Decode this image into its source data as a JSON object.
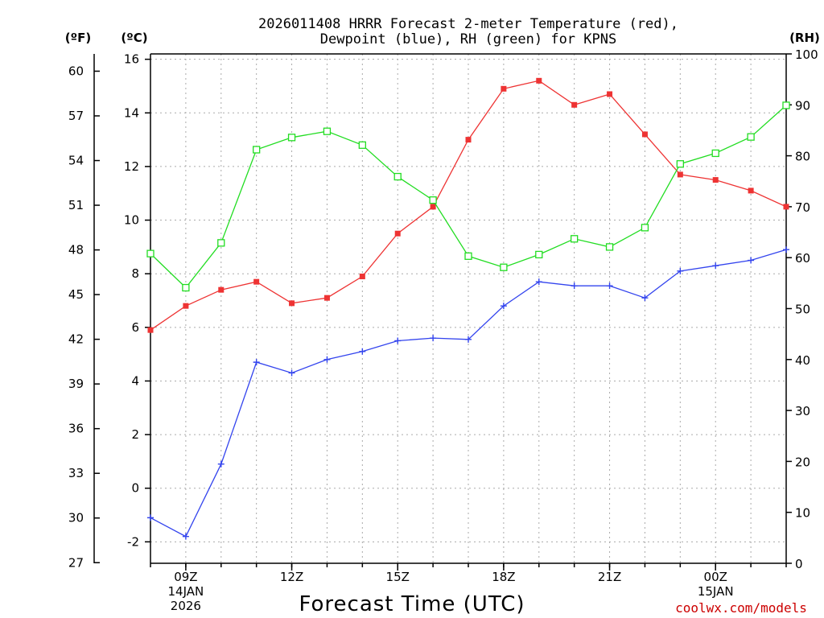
{
  "chart_data": {
    "type": "line",
    "title": "2026011408 HRRR Forecast 2-meter Temperature (red), Dewpoint (blue), RH (green) for KPNS",
    "title_lines": [
      "2026011408 HRRR Forecast 2-meter Temperature (red),",
      "Dewpoint (blue), RH (green) for KPNS"
    ],
    "xlabel": "Forecast Time (UTC)",
    "credit": "coolwx.com/models",
    "x_hours": [
      8,
      9,
      10,
      11,
      12,
      13,
      14,
      15,
      16,
      17,
      18,
      19,
      20,
      21,
      22,
      23,
      24,
      25,
      26
    ],
    "x_ticks": [
      {
        "hour": 9,
        "lines": [
          "09Z",
          "14JAN",
          "2026"
        ]
      },
      {
        "hour": 12,
        "lines": [
          "12Z"
        ]
      },
      {
        "hour": 15,
        "lines": [
          "15Z"
        ]
      },
      {
        "hour": 18,
        "lines": [
          "18Z"
        ]
      },
      {
        "hour": 21,
        "lines": [
          "21Z"
        ]
      },
      {
        "hour": 24,
        "lines": [
          "00Z",
          "15JAN"
        ]
      }
    ],
    "y_celsius": {
      "unit_label": "(ºC)",
      "range": [
        -2.8,
        16.2
      ],
      "ticks": [
        "-2",
        "0",
        "2",
        "4",
        "6",
        "8",
        "10",
        "12",
        "14",
        "16"
      ]
    },
    "y_fahrenheit": {
      "unit_label": "(ºF)",
      "range": [
        26.96,
        61.16
      ],
      "ticks": [
        "27",
        "30",
        "33",
        "36",
        "39",
        "42",
        "45",
        "48",
        "51",
        "54",
        "57",
        "60"
      ]
    },
    "y_rh": {
      "unit_label": "(RH)",
      "range": [
        0,
        100
      ],
      "ticks": [
        "0",
        "10",
        "20",
        "30",
        "40",
        "50",
        "60",
        "70",
        "80",
        "90",
        "100"
      ]
    },
    "series": [
      {
        "name": "2-meter Temperature",
        "color": "#ee3333",
        "marker": "filled-square",
        "axis": "celsius",
        "values": [
          5.9,
          6.8,
          7.4,
          7.7,
          6.9,
          7.1,
          7.9,
          9.5,
          10.5,
          13.0,
          14.9,
          15.2,
          14.3,
          14.7,
          13.2,
          11.7,
          11.5,
          11.1,
          10.5
        ]
      },
      {
        "name": "Dewpoint",
        "color": "#3344ee",
        "marker": "plus",
        "axis": "celsius",
        "values": [
          -1.1,
          -1.8,
          0.9,
          4.7,
          4.3,
          4.8,
          5.1,
          5.5,
          5.6,
          5.55,
          6.8,
          7.7,
          7.55,
          7.55,
          7.1,
          8.1,
          8.3,
          8.5,
          8.9
        ]
      },
      {
        "name": "RH",
        "color": "#22dd22",
        "marker": "open-square",
        "axis": "rh",
        "values": [
          60.8,
          54.1,
          62.9,
          81.2,
          83.6,
          84.8,
          82.1,
          75.9,
          71.3,
          60.3,
          58.1,
          60.6,
          63.7,
          62.1,
          65.9,
          78.4,
          80.5,
          83.7,
          89.9
        ]
      }
    ]
  }
}
